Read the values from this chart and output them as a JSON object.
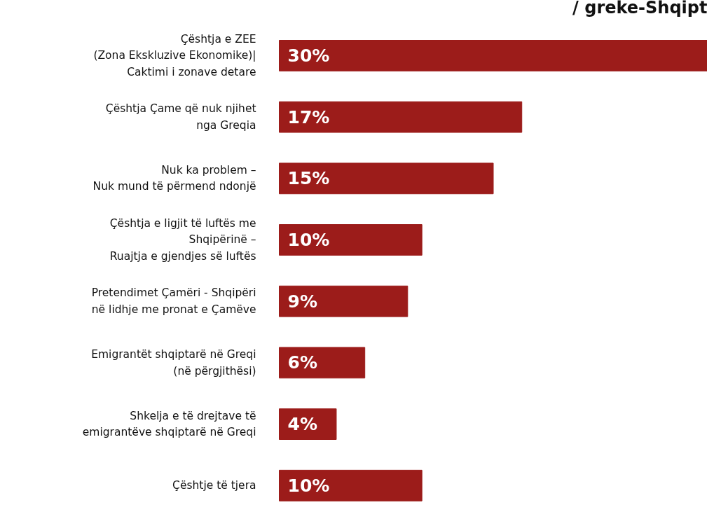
{
  "chart_data": {
    "type": "bar",
    "orientation": "horizontal",
    "title": "/ greke-Shqipt",
    "categories": [
      "Çështja e ZEE\n(Zona Ekskluzive Ekonomike)|\nCaktimi i zonave detare",
      "Çështja Çame që nuk njihet\nnga Greqia",
      "Nuk ka problem –\nNuk mund të përmend ndonjë",
      "Çështja e ligjit të luftës me\nShqipërinë –\nRuajtja e gjendjes së luftës",
      "Pretendimet Çamëri - Shqipëri\nnë lidhje me pronat e Çamëve",
      "Emigrantët shqiptarë në Greqi\n(në përgjithësi)",
      "Shkelja e të drejtave të\nemigrantëve shqiptarë në Greqi",
      "Çështje të tjera"
    ],
    "values": [
      30,
      17,
      15,
      10,
      9,
      6,
      4,
      10
    ],
    "value_labels": [
      "30%",
      "17%",
      "15%",
      "10%",
      "9%",
      "6%",
      "4%",
      "10%"
    ],
    "color": "#9c1c1a",
    "grid": false
  }
}
